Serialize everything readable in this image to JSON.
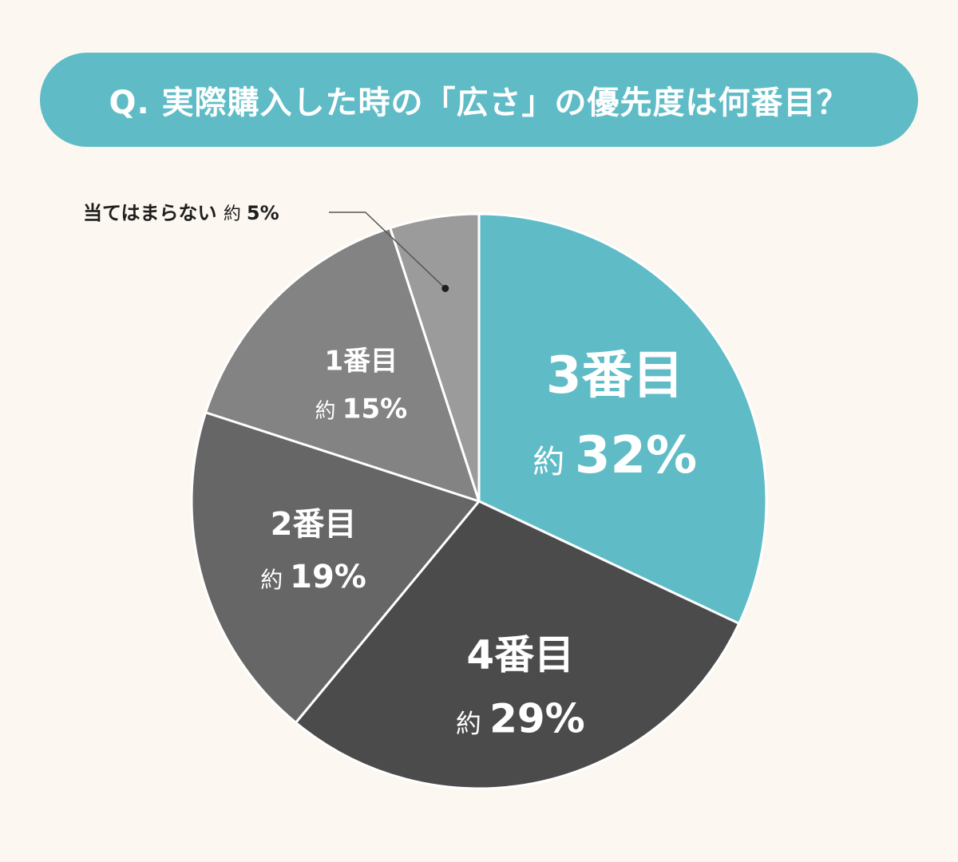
{
  "title": "Q. 実際購入した時の「広さ」の優先度は何番目？",
  "chart_data": {
    "type": "pie",
    "title": "Q. 実際購入した時の「広さ」の優先度は何番目？",
    "slices": [
      {
        "name": "3番目",
        "label": "3番目",
        "pct_prefix": "約",
        "pct_value": "32%",
        "value": 32,
        "color": "#5fbcc7"
      },
      {
        "name": "4番目",
        "label": "4番目",
        "pct_prefix": "約",
        "pct_value": "29%",
        "value": 29,
        "color": "#4b4b4b"
      },
      {
        "name": "2番目",
        "label": "2番目",
        "pct_prefix": "約",
        "pct_value": "19%",
        "value": 19,
        "color": "#666666"
      },
      {
        "name": "1番目",
        "label": "1番目",
        "pct_prefix": "約",
        "pct_value": "15%",
        "value": 15,
        "color": "#838383"
      },
      {
        "name": "当てはまらない",
        "label": "当てはまらない",
        "pct_prefix": "約",
        "pct_value": "5%",
        "value": 5,
        "color": "#9b9b9b"
      }
    ]
  }
}
